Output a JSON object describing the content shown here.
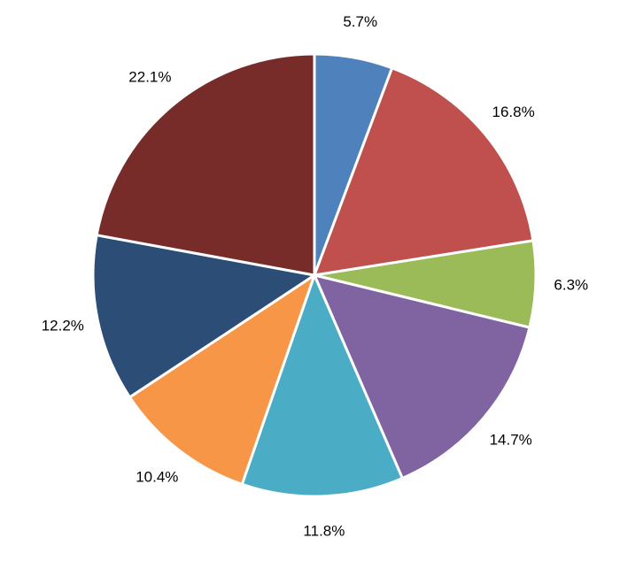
{
  "chart_data": {
    "type": "pie",
    "start_angle_deg": 0,
    "direction": "clockwise",
    "legend": "none",
    "slices": [
      {
        "value": 5.7,
        "label": "5.7%",
        "color": "#4F81BD"
      },
      {
        "value": 16.8,
        "label": "16.8%",
        "color": "#C0504D"
      },
      {
        "value": 6.3,
        "label": "6.3%",
        "color": "#9BBB59"
      },
      {
        "value": 14.7,
        "label": "14.7%",
        "color": "#8064A2"
      },
      {
        "value": 11.8,
        "label": "11.8%",
        "color": "#4BACC6"
      },
      {
        "value": 10.4,
        "label": "10.4%",
        "color": "#F79646"
      },
      {
        "value": 12.2,
        "label": "12.2%",
        "color": "#2C4D75"
      },
      {
        "value": 22.1,
        "label": "22.1%",
        "color": "#772C2A"
      }
    ]
  }
}
